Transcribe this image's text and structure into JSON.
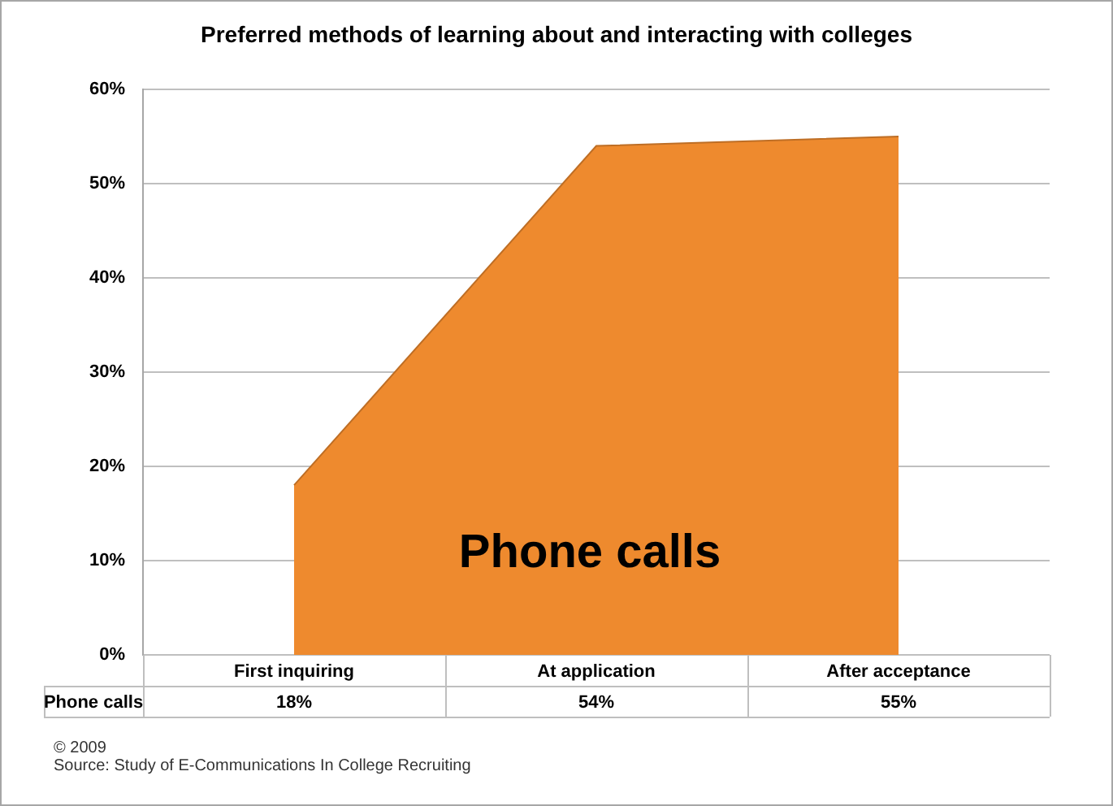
{
  "chart_data": {
    "type": "area",
    "title": "Preferred methods of learning about and interacting with colleges",
    "categories": [
      "First inquiring",
      "At application",
      "After acceptance"
    ],
    "series": [
      {
        "name": "Phone calls",
        "color": "#ee8a2e",
        "values": [
          18,
          54,
          55
        ],
        "value_labels": [
          "18%",
          "54%",
          "55%"
        ]
      }
    ],
    "ylim": [
      0,
      60
    ],
    "yticks": [
      {
        "value": 0,
        "label": "0%"
      },
      {
        "value": 10,
        "label": "10%"
      },
      {
        "value": 20,
        "label": "20%"
      },
      {
        "value": 30,
        "label": "30%"
      },
      {
        "value": 40,
        "label": "40%"
      },
      {
        "value": 50,
        "label": "50%"
      },
      {
        "value": 60,
        "label": "60%"
      }
    ],
    "grid": "y",
    "annotations": [
      "© 2009",
      "Source: Study of E-Communications In College Recruiting"
    ]
  }
}
